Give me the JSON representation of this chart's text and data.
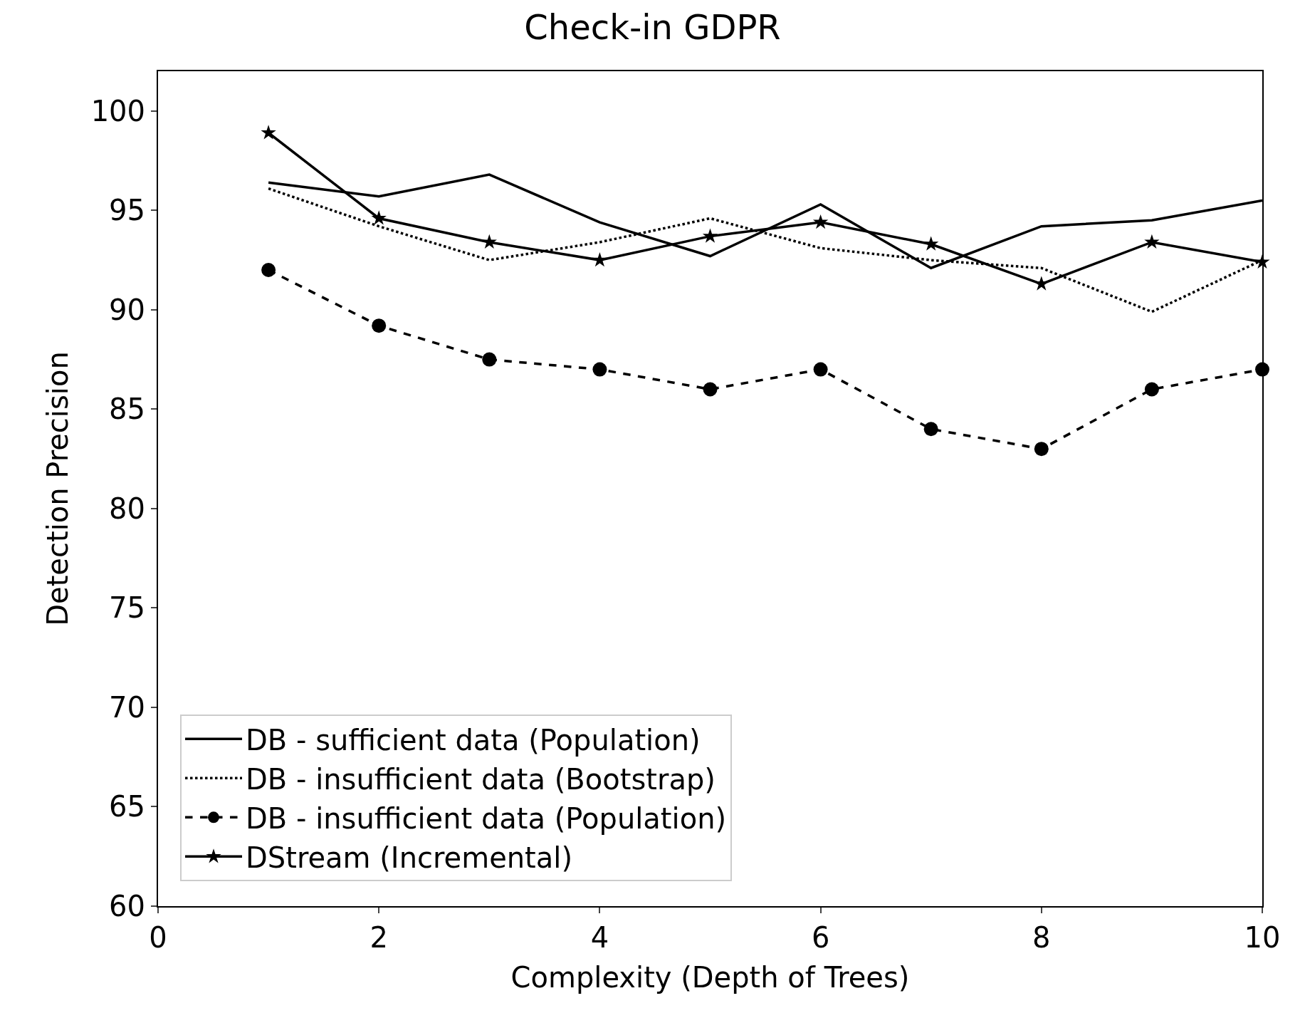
{
  "chart_data": {
    "type": "line",
    "title": "Check-in GDPR",
    "xlabel": "Complexity (Depth of Trees)",
    "ylabel": "Detection Precision",
    "x": [
      1,
      2,
      3,
      4,
      5,
      6,
      7,
      8,
      9,
      10
    ],
    "series": [
      {
        "name": "DB - sufficient data (Population)",
        "color": "#000000",
        "line_style": "solid",
        "marker": "none",
        "values": [
          96.4,
          95.7,
          96.8,
          94.4,
          92.7,
          95.3,
          92.1,
          94.2,
          94.5,
          95.5
        ]
      },
      {
        "name": "DB - insufficient data (Bootstrap)",
        "color": "#000000",
        "line_style": "dotted",
        "marker": "none",
        "values": [
          96.1,
          94.2,
          92.5,
          93.4,
          94.6,
          93.1,
          92.5,
          92.1,
          89.9,
          92.5
        ]
      },
      {
        "name": "DB - insufficient data (Population)",
        "color": "#000000",
        "line_style": "dashed",
        "marker": "circle",
        "values": [
          92,
          89.2,
          87.5,
          87,
          86,
          87,
          84,
          83,
          86,
          87
        ]
      },
      {
        "name": "DStream (Incremental)",
        "color": "#000000",
        "line_style": "solid",
        "marker": "star",
        "values": [
          98.9,
          94.6,
          93.4,
          92.5,
          93.7,
          94.4,
          93.3,
          91.3,
          93.4,
          92.4
        ]
      }
    ],
    "xlim": [
      0,
      10
    ],
    "xticks": [
      0,
      2,
      4,
      6,
      8,
      10
    ],
    "ylim": [
      60,
      102
    ],
    "yticks": [
      60,
      65,
      70,
      75,
      80,
      85,
      90,
      95,
      100
    ],
    "grid": false,
    "legend": "bottom left"
  }
}
